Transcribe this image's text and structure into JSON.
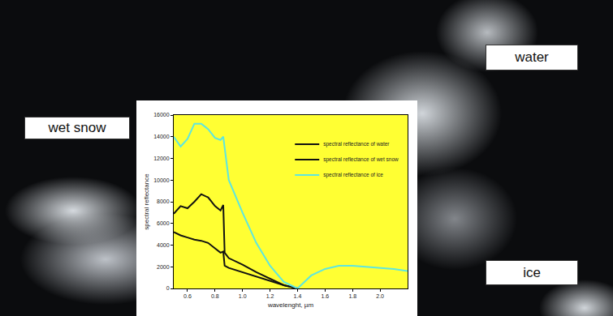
{
  "chart_data": {
    "type": "line",
    "xlabel": "wavelenght, µm",
    "ylabel": "spectral reflectance",
    "xlim": [
      0.5,
      2.2
    ],
    "ylim": [
      0,
      16000
    ],
    "xticks": [
      0.6,
      0.8,
      {
        "value": 1,
        "label": "1.0"
      },
      1.2,
      1.4,
      1.6,
      1.8,
      {
        "value": 2,
        "label": "2.0"
      }
    ],
    "yticks": [
      0,
      2000,
      4000,
      6000,
      8000,
      10000,
      12000,
      14000,
      16000
    ],
    "legend": "upper right",
    "series": [
      {
        "name": "spectral reflectance of water",
        "color": "#111111",
        "x": [
          0.5,
          0.55,
          0.6,
          0.65,
          0.7,
          0.75,
          0.8,
          0.84,
          0.86,
          0.87,
          0.9,
          1.0,
          1.1,
          1.2,
          1.3,
          1.4
        ],
        "values": [
          5200,
          4900,
          4700,
          4500,
          4400,
          4200,
          3700,
          3300,
          3400,
          2100,
          1900,
          1500,
          1100,
          700,
          300,
          0
        ]
      },
      {
        "name": "spectral reflectance of wet snow",
        "color": "#111111",
        "x": [
          0.5,
          0.55,
          0.6,
          0.65,
          0.7,
          0.75,
          0.8,
          0.84,
          0.86,
          0.87,
          0.9,
          1.0,
          1.1,
          1.2,
          1.3,
          1.4
        ],
        "values": [
          6900,
          7600,
          7400,
          8000,
          8700,
          8400,
          7600,
          7200,
          7700,
          3300,
          2800,
          2200,
          1500,
          900,
          300,
          0
        ]
      },
      {
        "name": "spectral reflectance of ice",
        "color": "#5ee6e0",
        "x": [
          0.5,
          0.55,
          0.6,
          0.65,
          0.7,
          0.75,
          0.8,
          0.84,
          0.86,
          0.9,
          1.0,
          1.1,
          1.2,
          1.3,
          1.4,
          1.5,
          1.6,
          1.7,
          1.8,
          1.9,
          2.0,
          2.1,
          2.2
        ],
        "values": [
          14000,
          13100,
          13800,
          15200,
          15200,
          14700,
          13900,
          13700,
          14000,
          10000,
          7000,
          4200,
          2100,
          600,
          0,
          1200,
          1800,
          2100,
          2100,
          2000,
          1900,
          1800,
          1600
        ]
      }
    ],
    "annotations": [
      {
        "text": "wet snow"
      },
      {
        "text": "water"
      },
      {
        "text": "ice"
      }
    ]
  }
}
